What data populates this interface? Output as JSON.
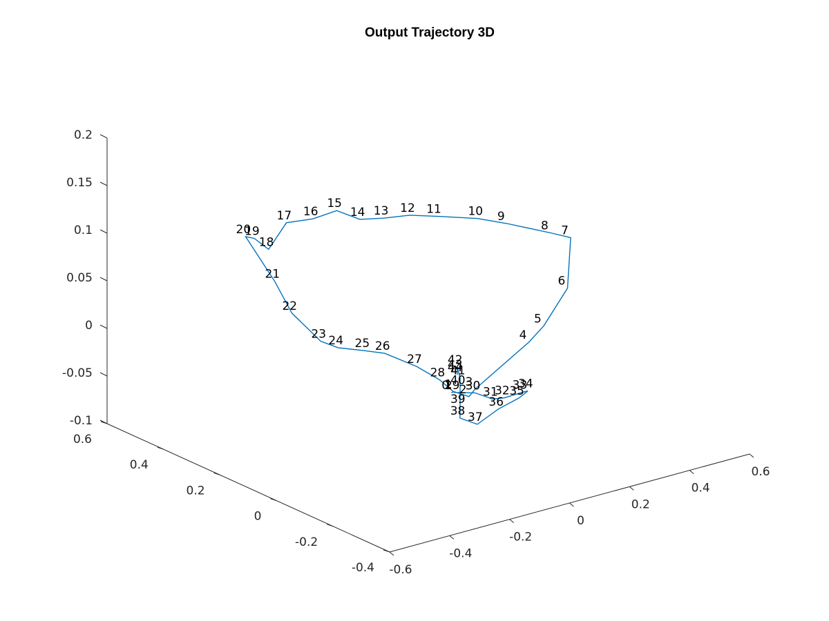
{
  "chart_data": {
    "type": "line",
    "subtype": "3d-trajectory",
    "title": "Output Trajectory 3D",
    "xlabel": "",
    "ylabel": "",
    "zlabel": "",
    "grid": false,
    "legend": "none",
    "line_color": "#0072BD",
    "x_axis": {
      "range": [
        -0.6,
        0.6
      ],
      "ticks": [
        "-0.6",
        "-0.4",
        "-0.2",
        "0",
        "0.2",
        "0.4",
        "0.6"
      ]
    },
    "y_axis": {
      "range": [
        -0.4,
        0.6
      ],
      "ticks": [
        "-0.4",
        "-0.2",
        "0",
        "0.2",
        "0.4",
        "0.6"
      ]
    },
    "z_axis": {
      "range": [
        -0.1,
        0.2
      ],
      "ticks": [
        "-0.1",
        "-0.05",
        "0",
        "0.05",
        "0.1",
        "0.15",
        "0.2"
      ]
    },
    "point_labels": [
      "0",
      "1",
      "2",
      "3",
      "4",
      "5",
      "6",
      "7",
      "8",
      "9",
      "10",
      "11",
      "12",
      "13",
      "14",
      "15",
      "16",
      "17",
      "18",
      "19",
      "20",
      "21",
      "22",
      "23",
      "24",
      "25",
      "26",
      "27",
      "28",
      "29",
      "30",
      "31",
      "32",
      "33",
      "34",
      "35",
      "36",
      "37",
      "38",
      "39",
      "40",
      "41",
      "42",
      "43",
      "44"
    ],
    "points": [
      {
        "x": 0.02,
        "y": 0.04,
        "z": -0.045
      },
      {
        "x": 0.03,
        "y": 0.04,
        "z": -0.045
      },
      {
        "x": 0.06,
        "y": 0.02,
        "z": -0.05
      },
      {
        "x": 0.08,
        "y": 0.02,
        "z": -0.044
      },
      {
        "x": 0.26,
        "y": 0.02,
        "z": -0.01
      },
      {
        "x": 0.3,
        "y": 0.01,
        "z": 0.005
      },
      {
        "x": 0.37,
        "y": 0.0,
        "z": 0.04
      },
      {
        "x": 0.39,
        "y": 0.01,
        "z": 0.09
      },
      {
        "x": 0.37,
        "y": 0.06,
        "z": 0.09
      },
      {
        "x": 0.3,
        "y": 0.14,
        "z": 0.095
      },
      {
        "x": 0.24,
        "y": 0.18,
        "z": 0.1
      },
      {
        "x": 0.12,
        "y": 0.2,
        "z": 0.11
      },
      {
        "x": 0.07,
        "y": 0.24,
        "z": 0.11
      },
      {
        "x": 0.01,
        "y": 0.27,
        "z": 0.108
      },
      {
        "x": -0.04,
        "y": 0.3,
        "z": 0.107
      },
      {
        "x": -0.07,
        "y": 0.35,
        "z": 0.112
      },
      {
        "x": -0.14,
        "y": 0.36,
        "z": 0.108
      },
      {
        "x": -0.2,
        "y": 0.39,
        "z": 0.105
      },
      {
        "x": -0.25,
        "y": 0.4,
        "z": 0.08
      },
      {
        "x": -0.26,
        "y": 0.44,
        "z": 0.087
      },
      {
        "x": -0.27,
        "y": 0.46,
        "z": 0.087
      },
      {
        "x": -0.23,
        "y": 0.4,
        "z": 0.045
      },
      {
        "x": -0.21,
        "y": 0.36,
        "z": 0.015
      },
      {
        "x": -0.17,
        "y": 0.3,
        "z": -0.01
      },
      {
        "x": -0.15,
        "y": 0.26,
        "z": -0.013
      },
      {
        "x": -0.1,
        "y": 0.22,
        "z": -0.015
      },
      {
        "x": -0.07,
        "y": 0.18,
        "z": -0.015
      },
      {
        "x": -0.02,
        "y": 0.12,
        "z": -0.025
      },
      {
        "x": 0.01,
        "y": 0.07,
        "z": -0.035
      },
      {
        "x": 0.04,
        "y": 0.05,
        "z": -0.048
      },
      {
        "x": 0.09,
        "y": 0.03,
        "z": -0.05
      },
      {
        "x": 0.12,
        "y": 0.0,
        "z": -0.055
      },
      {
        "x": 0.15,
        "y": -0.01,
        "z": -0.055
      },
      {
        "x": 0.19,
        "y": -0.03,
        "z": -0.05
      },
      {
        "x": 0.2,
        "y": -0.04,
        "z": -0.048
      },
      {
        "x": 0.18,
        "y": -0.03,
        "z": -0.055
      },
      {
        "x": 0.13,
        "y": -0.01,
        "z": -0.065
      },
      {
        "x": 0.06,
        "y": -0.01,
        "z": -0.075
      },
      {
        "x": 0.03,
        "y": 0.02,
        "z": -0.07
      },
      {
        "x": 0.04,
        "y": 0.03,
        "z": -0.06
      },
      {
        "x": 0.04,
        "y": 0.03,
        "z": -0.04
      },
      {
        "x": 0.04,
        "y": 0.03,
        "z": -0.03
      },
      {
        "x": 0.04,
        "y": 0.04,
        "z": -0.02
      },
      {
        "x": 0.04,
        "y": 0.04,
        "z": -0.025
      },
      {
        "x": 0.04,
        "y": 0.04,
        "z": -0.028
      }
    ]
  }
}
